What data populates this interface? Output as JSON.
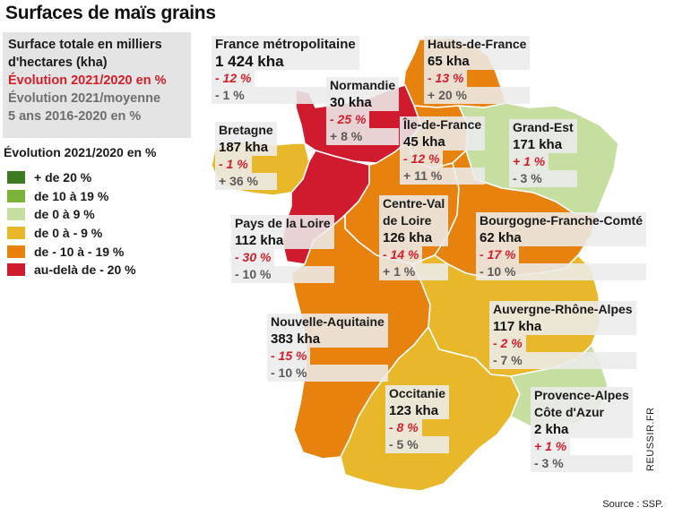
{
  "title": "Surfaces de maïs grains",
  "infobox": {
    "line1": "Surface totale en milliers",
    "line2": "d'hectares (kha)",
    "line3": "Évolution 2021/2020 en %",
    "line4": "Évolution 2021/moyenne",
    "line5": "5 ans 2016-2020 en %"
  },
  "legend": {
    "title": "Évolution 2021/2020 en %",
    "items": [
      {
        "label": "+ de 20 %",
        "color": "#3d7a22"
      },
      {
        "label": "de 10 à 19 %",
        "color": "#7ab338"
      },
      {
        "label": "de 0 à 9 %",
        "color": "#c6dea0"
      },
      {
        "label": "de 0 à - 9 %",
        "color": "#e8b82a"
      },
      {
        "label": "de - 10 à - 19 %",
        "color": "#e8820e"
      },
      {
        "label": "au-delà de - 20 %",
        "color": "#d01a2e"
      }
    ]
  },
  "france": {
    "name": "France métropolitaine",
    "kha": "1 424 kha",
    "evo": "- 12 %",
    "avg": "- 1 %"
  },
  "regions": {
    "hdf": {
      "name": "Hauts-de-France",
      "kha": "65 kha",
      "evo": "- 13 %",
      "avg": "+ 20 %",
      "color": "#e8820e"
    },
    "nor": {
      "name": "Normandie",
      "kha": "30 kha",
      "evo": "- 25 %",
      "avg": "+ 8 %",
      "color": "#d01a2e"
    },
    "idf": {
      "name": "Île-de-France",
      "kha": "45 kha",
      "evo": "- 12 %",
      "avg": "+ 11 %",
      "color": "#e8820e"
    },
    "ge": {
      "name": "Grand-Est",
      "kha": "171 kha",
      "evo": "+ 1 %",
      "avg": "- 3 %",
      "color": "#c6dea0"
    },
    "bre": {
      "name": "Bretagne",
      "kha": "187 kha",
      "evo": "- 1 %",
      "avg": "+ 36 %",
      "color": "#e8b82a"
    },
    "pdl": {
      "name": "Pays de la Loire",
      "kha": "112 kha",
      "evo": "- 30 %",
      "avg": "- 10 %",
      "color": "#d01a2e"
    },
    "cvl": {
      "name1": "Centre-Val",
      "name2": "de Loire",
      "kha": "126 kha",
      "evo": "- 14 %",
      "avg": "+ 1 %",
      "color": "#e8820e"
    },
    "bfc": {
      "name": "Bourgogne-Franche-Comté",
      "kha": "62 kha",
      "evo": "- 17 %",
      "avg": "- 10 %",
      "color": "#e8820e"
    },
    "na": {
      "name": "Nouvelle-Aquitaine",
      "kha": "383 kha",
      "evo": "- 15 %",
      "avg": "- 10 %",
      "color": "#e8820e"
    },
    "ara": {
      "name": "Auvergne-Rhône-Alpes",
      "kha": "117 kha",
      "evo": "- 2 %",
      "avg": "- 7 %",
      "color": "#e8b82a"
    },
    "occ": {
      "name": "Occitanie",
      "kha": "123 kha",
      "evo": "- 8 %",
      "avg": "- 5 %",
      "color": "#e8b82a"
    },
    "paca": {
      "name1": "Provence-Alpes",
      "name2": "Côte d'Azur",
      "kha": "2 kha",
      "evo": "+ 1 %",
      "avg": "- 3 %",
      "color": "#c6dea0"
    }
  },
  "source": "Source : SSP.",
  "credit": "REUSSIR.FR"
}
